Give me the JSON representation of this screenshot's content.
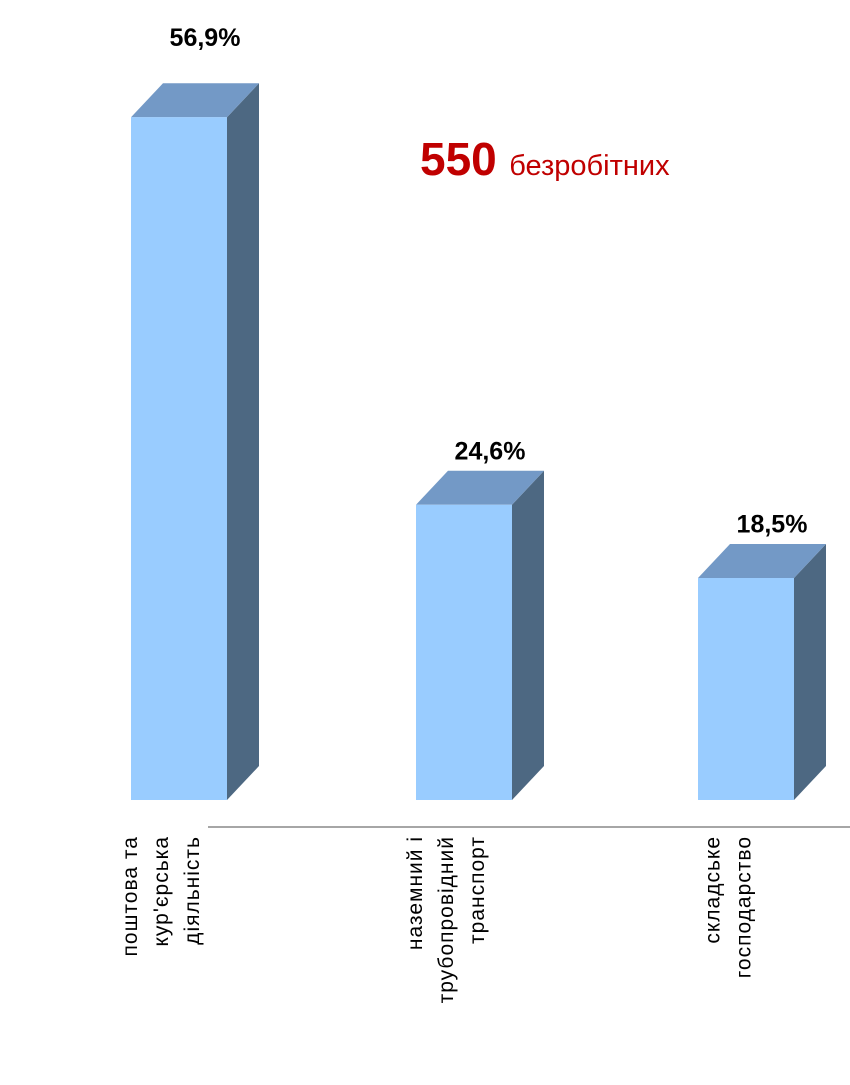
{
  "chart_data": {
    "type": "bar3d",
    "categories": [
      "поштова та\nкур'єрська\nдіяльність",
      "наземний і\nтрубопровідний\nтранспорт",
      "складське\nгосподарство"
    ],
    "values": [
      56.9,
      24.6,
      18.5
    ],
    "value_labels": [
      "56,9%",
      "24,6%",
      "18,5%"
    ],
    "color": "#99ccff",
    "annotation": {
      "number": "550",
      "text": "безробітних"
    }
  }
}
